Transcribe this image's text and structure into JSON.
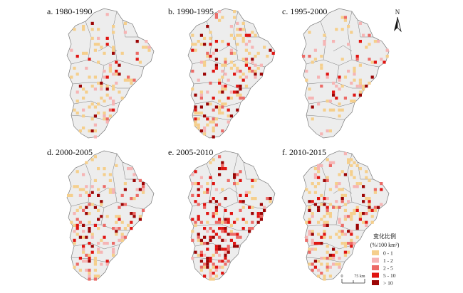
{
  "panels": [
    {
      "label": "a. 1980-1990",
      "intensity": 0.55,
      "hot": 0.18
    },
    {
      "label": "b. 1990-1995",
      "intensity": 0.95,
      "hot": 0.35
    },
    {
      "label": "c. 1995-2000",
      "intensity": 0.45,
      "hot": 0.15
    },
    {
      "label": "d. 2000-2005",
      "intensity": 0.75,
      "hot": 0.4
    },
    {
      "label": "e. 2005-2010",
      "intensity": 1.0,
      "hot": 0.65
    },
    {
      "label": "f. 2010-2015",
      "intensity": 1.0,
      "hot": 0.3
    }
  ],
  "north_label": "N",
  "legend": {
    "title_line1": "变化比例",
    "title_line2": "(%/100 km²)",
    "classes": [
      {
        "label": "0 - 1",
        "color": "#f5cf8c"
      },
      {
        "label": "1 - 2",
        "color": "#f6b4b4"
      },
      {
        "label": "2 - 5",
        "color": "#ec6a66"
      },
      {
        "label": "5 - 10",
        "color": "#e01512"
      },
      {
        "label": "> 10",
        "color": "#9c0505"
      }
    ]
  },
  "scalebar": {
    "zero": "0",
    "end": "75 km"
  },
  "colors": {
    "region_fill": "#ededed",
    "region_stroke": "#7a7a7a"
  }
}
